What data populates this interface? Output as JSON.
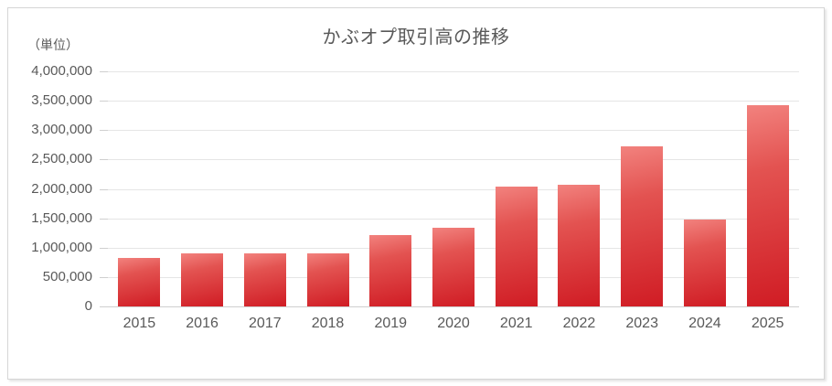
{
  "chart": {
    "title": "かぶオプ取引高の推移",
    "unit_label": "（単位）"
  },
  "chart_data": {
    "type": "bar",
    "title": "かぶオプ取引高の推移",
    "ylabel": "（単位）",
    "categories": [
      "2015",
      "2016",
      "2017",
      "2018",
      "2019",
      "2020",
      "2021",
      "2022",
      "2023",
      "2024",
      "2025"
    ],
    "values": [
      830000,
      900000,
      900000,
      900000,
      1210000,
      1340000,
      2040000,
      2070000,
      2720000,
      1480000,
      3430000
    ],
    "ylim": [
      0,
      4000000
    ],
    "ytick_step": 500000,
    "yticklabels": [
      "0",
      "500,000",
      "1,000,000",
      "1,500,000",
      "2,000,000",
      "2,500,000",
      "3,000,000",
      "3,500,000",
      "4,000,000"
    ],
    "grid": true,
    "legend": false,
    "bar_color_top": "#f2827e",
    "bar_color_bottom": "#d01c24",
    "gridline_color": "#e5e5e5",
    "axis_color": "#cfcfcf",
    "text_color": "#595959"
  }
}
